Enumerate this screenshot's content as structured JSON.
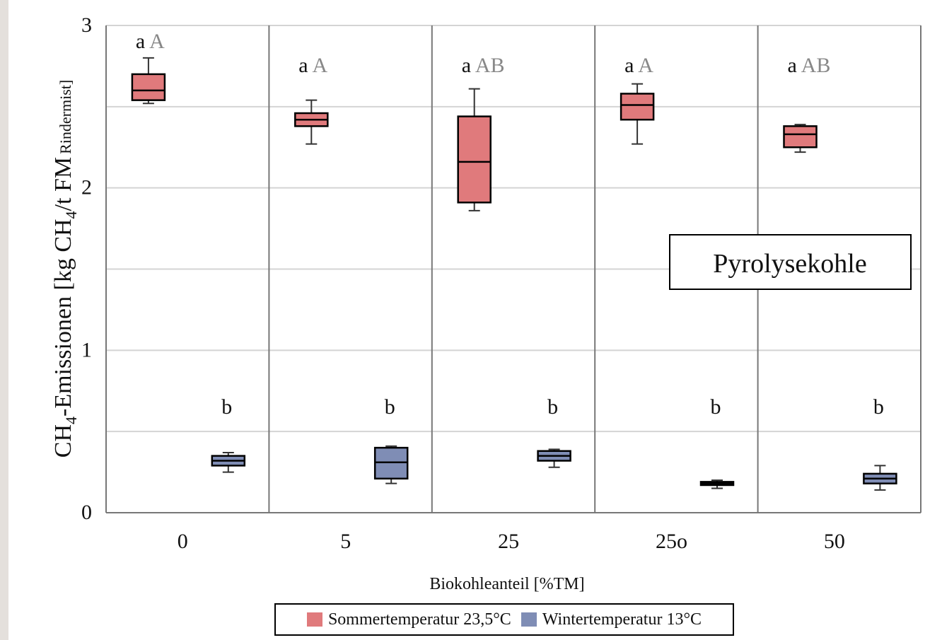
{
  "chart_data": {
    "type": "box",
    "ylabel_main": "CH",
    "ylabel_sub1": "4",
    "ylabel_mid": "-Emissionen [kg CH",
    "ylabel_sub2": "4",
    "ylabel_end": "/t FM",
    "ylabel_sub3": "Rindermist]",
    "xlabel": "Biokohleanteil [%TM]",
    "ylim": [
      0,
      3
    ],
    "yticks": [
      "0",
      "1",
      "2",
      "3"
    ],
    "grid": true,
    "annotation": "Pyrolysekohle",
    "categories": [
      "0",
      "5",
      "25",
      "25o",
      "50"
    ],
    "colors": {
      "summer": "#e07a7c",
      "winter": "#7f8db5"
    },
    "series": [
      {
        "name": "Sommertemperatur 23,5°C",
        "boxes": [
          {
            "min": 2.52,
            "q1": 2.54,
            "median": 2.6,
            "q3": 2.7,
            "max": 2.8
          },
          {
            "min": 2.27,
            "q1": 2.38,
            "median": 2.42,
            "q3": 2.46,
            "max": 2.54
          },
          {
            "min": 1.86,
            "q1": 1.91,
            "median": 2.16,
            "q3": 2.44,
            "max": 2.61
          },
          {
            "min": 2.27,
            "q1": 2.42,
            "median": 2.51,
            "q3": 2.58,
            "max": 2.64
          },
          {
            "min": 2.22,
            "q1": 2.25,
            "median": 2.33,
            "q3": 2.38,
            "max": 2.39
          }
        ],
        "letters_lower": [
          "a",
          "a",
          "a",
          "a",
          "a"
        ],
        "letters_upper": [
          "A",
          "A",
          "AB",
          "A",
          "AB"
        ]
      },
      {
        "name": "Wintertemperatur 13°C",
        "boxes": [
          {
            "min": 0.25,
            "q1": 0.29,
            "median": 0.32,
            "q3": 0.35,
            "max": 0.37
          },
          {
            "min": 0.18,
            "q1": 0.21,
            "median": 0.31,
            "q3": 0.4,
            "max": 0.41
          },
          {
            "min": 0.28,
            "q1": 0.32,
            "median": 0.35,
            "q3": 0.38,
            "max": 0.39
          },
          {
            "min": 0.15,
            "q1": 0.17,
            "median": 0.18,
            "q3": 0.19,
            "max": 0.2
          },
          {
            "min": 0.14,
            "q1": 0.18,
            "median": 0.21,
            "q3": 0.24,
            "max": 0.29
          }
        ],
        "letters_lower": [
          "b",
          "b",
          "b",
          "b",
          "b"
        ]
      }
    ]
  }
}
